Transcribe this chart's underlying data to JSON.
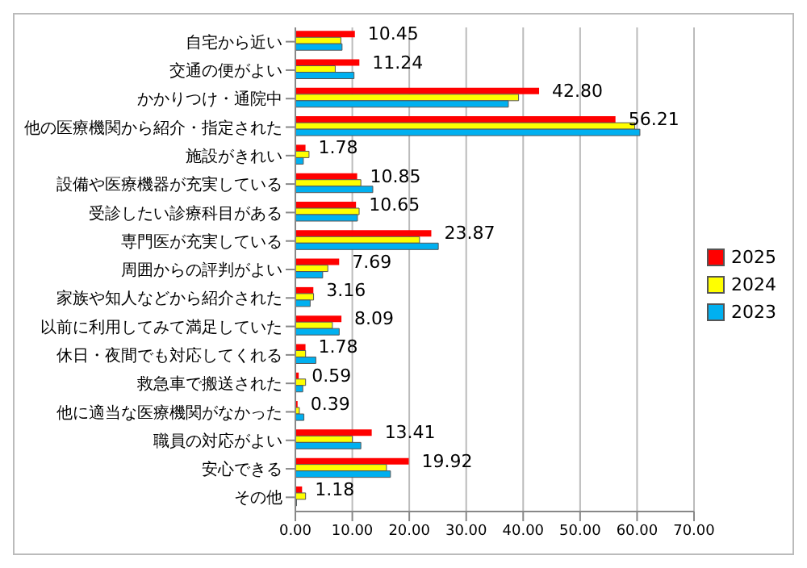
{
  "chart_data": {
    "type": "bar",
    "orientation": "horizontal",
    "categories": [
      "自宅から近い",
      "交通の便がよい",
      "かかりつけ・通院中",
      "他の医療機関から紹介・指定された",
      "施設がきれい",
      "設備や医療機器が充実している",
      "受診したい診療科目がある",
      "専門医が充実している",
      "周囲からの評判がよい",
      "家族や知人などから紹介された",
      "以前に利用してみて満足していた",
      "休日・夜間でも対応してくれる",
      "救急車で搬送された",
      "他に適当な医療機関がなかった",
      "職員の対応がよい",
      "安心できる",
      "その他"
    ],
    "series": [
      {
        "name": "2025",
        "color": "#ff0000",
        "values": [
          10.45,
          11.24,
          42.8,
          56.21,
          1.78,
          10.85,
          10.65,
          23.87,
          7.69,
          3.16,
          8.09,
          1.78,
          0.59,
          0.39,
          13.41,
          19.92,
          1.18
        ],
        "value_labels": [
          "10.45",
          "11.24",
          "42.80",
          "56.21",
          "1.78",
          "10.85",
          "10.65",
          "23.87",
          "7.69",
          "3.16",
          "8.09",
          "1.78",
          "0.59",
          "0.39",
          "13.41",
          "19.92",
          "1.18"
        ]
      },
      {
        "name": "2024",
        "color": "#ffff00",
        "values": [
          8.0,
          7.0,
          39.2,
          59.6,
          2.4,
          11.5,
          11.2,
          21.8,
          5.7,
          3.2,
          6.5,
          1.8,
          1.8,
          0.7,
          10.0,
          16.0,
          1.8
        ]
      },
      {
        "name": "2023",
        "color": "#00b0f0",
        "values": [
          8.2,
          10.3,
          37.4,
          60.5,
          1.4,
          13.6,
          10.9,
          25.1,
          4.8,
          2.6,
          7.7,
          3.6,
          1.3,
          1.5,
          11.5,
          16.7,
          0.2
        ]
      }
    ],
    "xlim": [
      0,
      70
    ],
    "xticks": [
      {
        "value": 0,
        "label": "0.00"
      },
      {
        "value": 10,
        "label": "10.00"
      },
      {
        "value": 20,
        "label": "20.00"
      },
      {
        "value": 30,
        "label": "30.00"
      },
      {
        "value": 40,
        "label": "40.00"
      },
      {
        "value": 50,
        "label": "50.00"
      },
      {
        "value": 60,
        "label": "60.00"
      },
      {
        "value": 70,
        "label": "70.00"
      }
    ],
    "grid": "x",
    "legend": "right"
  }
}
